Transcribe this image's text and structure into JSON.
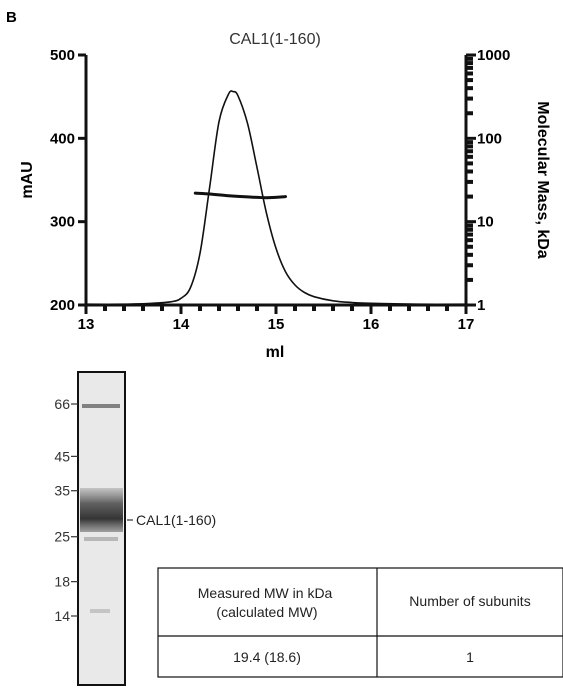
{
  "panel_letter": "B",
  "chart_data": {
    "type": "line",
    "title": "CAL1(1-160)",
    "xlabel": "ml",
    "ylabel": "mAU",
    "y2label": "Molecular Mass, kDa",
    "xlim": [
      13,
      17
    ],
    "ylim": [
      200,
      500
    ],
    "y2lim": [
      1,
      1000
    ],
    "y2scale": "log",
    "x_ticks": [
      "13",
      "14",
      "15",
      "16",
      "17"
    ],
    "y_ticks": [
      "200",
      "300",
      "400",
      "500"
    ],
    "y2_ticks": [
      "1",
      "10",
      "100",
      "1000"
    ],
    "grid": false,
    "series": [
      {
        "axis": "left",
        "x": [
          13.0,
          13.4,
          13.7,
          13.9,
          14.0,
          14.1,
          14.2,
          14.3,
          14.4,
          14.5,
          14.55,
          14.6,
          14.7,
          14.8,
          14.9,
          15.0,
          15.1,
          15.2,
          15.3,
          15.4,
          15.6,
          15.8,
          16.0,
          16.5,
          17.0
        ],
        "y": [
          201,
          201,
          202,
          204,
          208,
          221,
          262,
          340,
          420,
          453,
          456,
          451,
          418,
          365,
          310,
          268,
          240,
          224,
          215,
          210,
          205,
          203,
          202,
          201,
          201
        ]
      },
      {
        "axis": "right",
        "x": [
          14.15,
          14.3,
          14.5,
          14.7,
          14.9,
          15.1
        ],
        "y": [
          22,
          21.5,
          20.5,
          19.8,
          19.4,
          20
        ]
      }
    ]
  },
  "gel": {
    "markers": [
      {
        "label": "66",
        "kda": 66
      },
      {
        "label": "45",
        "kda": 45
      },
      {
        "label": "35",
        "kda": 35
      },
      {
        "label": "25",
        "kda": 25
      },
      {
        "label": "18",
        "kda": 18
      },
      {
        "label": "14",
        "kda": 14
      }
    ],
    "band_label": "CAL1(1-160)"
  },
  "table": {
    "headers": [
      "Measured MW in kDa (calculated MW)",
      "Number of subunits"
    ],
    "header1_lines": [
      "Measured MW in kDa",
      "(calculated MW)"
    ],
    "rows": [
      [
        "19.4 (18.6)",
        "1"
      ]
    ]
  }
}
